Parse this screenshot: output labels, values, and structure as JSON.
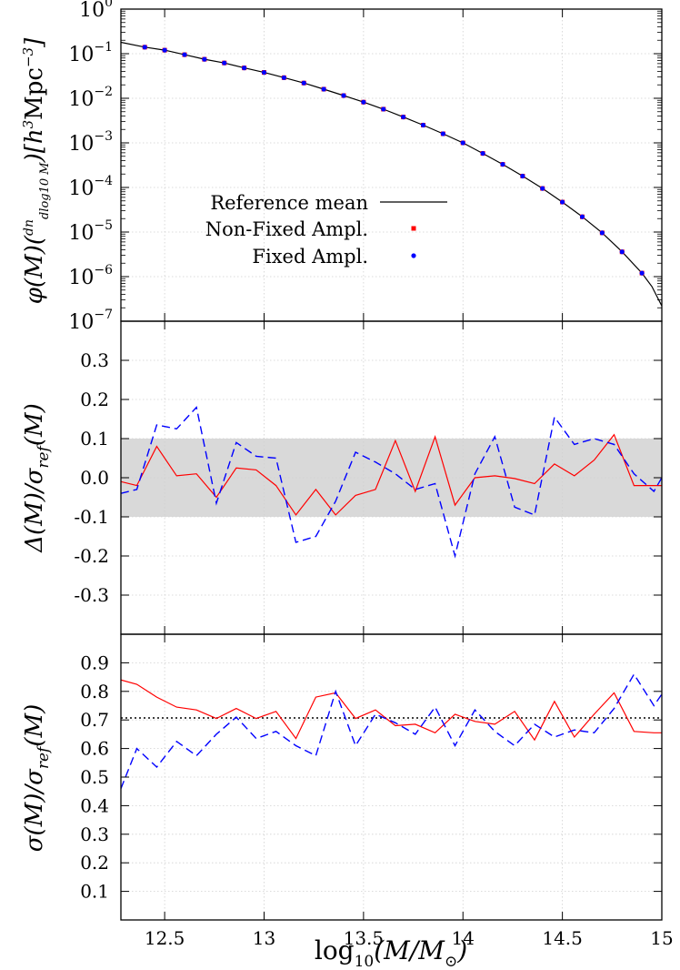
{
  "chart_data": [
    {
      "type": "line",
      "panel": "top",
      "ylabel": "φ(M)(dn/dlog10 M)[h^3 Mpc^-3]",
      "ylabel_parts": {
        "pre": "φ(M)(",
        "num": "dn",
        "den": "dlog",
        "den_sub": "10",
        "den_post": "M",
        "post": ")[h",
        "sup3": "3",
        "unit": "Mpc",
        "sup_neg": "−3",
        "close": "]"
      },
      "y_scale": "log",
      "ylim": [
        1e-07,
        1
      ],
      "xlim": [
        12.28,
        15.0
      ],
      "grid": true,
      "legend_position": "center-left",
      "yticks": [
        {
          "value": -7,
          "base": "10",
          "exp": "−7"
        },
        {
          "value": -6,
          "base": "10",
          "exp": "−6"
        },
        {
          "value": -5,
          "base": "10",
          "exp": "−5"
        },
        {
          "value": -4,
          "base": "10",
          "exp": "−4"
        },
        {
          "value": -3,
          "base": "10",
          "exp": "−3"
        },
        {
          "value": -2,
          "base": "10",
          "exp": "−2"
        },
        {
          "value": -1,
          "base": "10",
          "exp": "−1"
        },
        {
          "value": 0,
          "base": "10",
          "exp": "0"
        }
      ],
      "series": [
        {
          "name": "Reference mean",
          "style": "solid-line",
          "color": "#000000",
          "x": [
            12.28,
            12.4,
            12.5,
            12.6,
            12.7,
            12.8,
            12.9,
            13.0,
            13.1,
            13.2,
            13.3,
            13.4,
            13.5,
            13.6,
            13.7,
            13.8,
            13.9,
            14.0,
            14.1,
            14.2,
            14.3,
            14.4,
            14.5,
            14.6,
            14.7,
            14.8,
            14.9,
            14.95,
            15.0
          ],
          "y": [
            0.18,
            0.14,
            0.12,
            0.095,
            0.075,
            0.062,
            0.048,
            0.038,
            0.029,
            0.022,
            0.016,
            0.0115,
            0.0082,
            0.0057,
            0.0038,
            0.0025,
            0.0016,
            0.001,
            0.00058,
            0.00033,
            0.00018,
            9.5e-05,
            4.7e-05,
            2.2e-05,
            9.6e-06,
            3.6e-06,
            1.2e-06,
            6e-07,
            2.2e-07
          ]
        },
        {
          "name": "Non-Fixed Ampl.",
          "style": "square-points",
          "color": "#ff0000",
          "x": [
            12.4,
            12.5,
            12.6,
            12.7,
            12.8,
            12.9,
            13.0,
            13.1,
            13.2,
            13.3,
            13.4,
            13.5,
            13.6,
            13.7,
            13.8,
            13.9,
            14.0,
            14.1,
            14.2,
            14.3,
            14.4,
            14.5,
            14.6,
            14.7,
            14.8,
            14.9
          ],
          "y": [
            0.14,
            0.12,
            0.095,
            0.075,
            0.062,
            0.048,
            0.038,
            0.029,
            0.022,
            0.016,
            0.0115,
            0.0082,
            0.0057,
            0.0038,
            0.0025,
            0.0016,
            0.001,
            0.00058,
            0.00033,
            0.00018,
            9.5e-05,
            4.7e-05,
            2.2e-05,
            9.6e-06,
            3.6e-06,
            1.2e-06
          ]
        },
        {
          "name": "Fixed Ampl.",
          "style": "circle-points",
          "color": "#0000ff",
          "x": [
            12.4,
            12.5,
            12.6,
            12.7,
            12.8,
            12.9,
            13.0,
            13.1,
            13.2,
            13.3,
            13.4,
            13.5,
            13.6,
            13.7,
            13.8,
            13.9,
            14.0,
            14.1,
            14.2,
            14.3,
            14.4,
            14.5,
            14.6,
            14.7,
            14.8,
            14.9
          ],
          "y": [
            0.14,
            0.12,
            0.095,
            0.075,
            0.062,
            0.048,
            0.038,
            0.029,
            0.022,
            0.016,
            0.0115,
            0.0082,
            0.0057,
            0.0038,
            0.0025,
            0.0016,
            0.001,
            0.00058,
            0.00033,
            0.00018,
            9.5e-05,
            4.7e-05,
            2.2e-05,
            9.6e-06,
            3.6e-06,
            1.2e-06
          ]
        }
      ]
    },
    {
      "type": "line",
      "panel": "middle",
      "ylabel": "Δ(M)/σref(M)",
      "ylabel_parts": {
        "pre": "Δ(M)/σ",
        "sub": "ref",
        "post": "(M)"
      },
      "ylim": [
        -0.4,
        0.4
      ],
      "xlim": [
        12.28,
        15.0
      ],
      "grid": true,
      "band": {
        "from": -0.1,
        "to": 0.1,
        "color": "#d9d9d9"
      },
      "yticks": [
        {
          "value": -0.3,
          "label": "-0.3"
        },
        {
          "value": -0.2,
          "label": "-0.2"
        },
        {
          "value": -0.1,
          "label": "-0.1"
        },
        {
          "value": 0.0,
          "label": "0.0"
        },
        {
          "value": 0.1,
          "label": "0.1"
        },
        {
          "value": 0.2,
          "label": "0.2"
        },
        {
          "value": 0.3,
          "label": "0.3"
        }
      ],
      "series": [
        {
          "name": "Non-Fixed Ampl.",
          "style": "solid",
          "color": "#ff0000",
          "x": [
            12.28,
            12.36,
            12.46,
            12.56,
            12.66,
            12.76,
            12.86,
            12.96,
            13.06,
            13.16,
            13.26,
            13.36,
            13.46,
            13.56,
            13.66,
            13.76,
            13.86,
            13.96,
            14.06,
            14.16,
            14.26,
            14.36,
            14.46,
            14.56,
            14.66,
            14.76,
            14.86,
            14.96,
            15.0
          ],
          "y": [
            -0.01,
            -0.02,
            0.08,
            0.005,
            0.01,
            -0.05,
            0.025,
            0.02,
            -0.02,
            -0.095,
            -0.03,
            -0.095,
            -0.045,
            -0.03,
            0.095,
            -0.035,
            0.105,
            -0.07,
            0.0,
            0.005,
            -0.002,
            -0.015,
            0.035,
            0.005,
            0.045,
            0.11,
            -0.02,
            -0.02,
            -0.02
          ]
        },
        {
          "name": "Fixed Ampl.",
          "style": "dashed",
          "color": "#0000ff",
          "x": [
            12.28,
            12.36,
            12.46,
            12.56,
            12.66,
            12.76,
            12.86,
            12.96,
            13.06,
            13.16,
            13.26,
            13.36,
            13.46,
            13.56,
            13.66,
            13.76,
            13.86,
            13.96,
            14.06,
            14.16,
            14.26,
            14.36,
            14.46,
            14.56,
            14.66,
            14.76,
            14.86,
            14.96,
            15.0
          ],
          "y": [
            -0.04,
            -0.03,
            0.135,
            0.125,
            0.18,
            -0.065,
            0.09,
            0.055,
            0.05,
            -0.165,
            -0.15,
            -0.06,
            0.065,
            0.04,
            0.01,
            -0.03,
            -0.015,
            -0.2,
            0.01,
            0.105,
            -0.075,
            -0.095,
            0.155,
            0.085,
            0.1,
            0.085,
            0.01,
            -0.035,
            0.0
          ]
        }
      ]
    },
    {
      "type": "line",
      "panel": "bottom",
      "ylabel": "σ(M)/σref(M)",
      "ylabel_parts": {
        "pre": "σ(M)/σ",
        "sub": "ref",
        "post": "(M)"
      },
      "xlabel": "log10(M/M⊙)",
      "xlabel_parts": {
        "pre": "log",
        "sub": "10",
        "mid": "(M/M",
        "sub2": "⊙",
        "post": ")"
      },
      "ylim": [
        0.0,
        1.0
      ],
      "xlim": [
        12.28,
        15.0
      ],
      "grid": true,
      "reference_line": {
        "y": 0.707,
        "style": "dotted",
        "color": "#000000"
      },
      "xticks": [
        {
          "value": 12.5,
          "label": "12.5"
        },
        {
          "value": 13.0,
          "label": "13"
        },
        {
          "value": 13.5,
          "label": "13.5"
        },
        {
          "value": 14.0,
          "label": "14"
        },
        {
          "value": 14.5,
          "label": "14.5"
        },
        {
          "value": 15.0,
          "label": "15"
        }
      ],
      "yticks": [
        {
          "value": 0.1,
          "label": "0.1"
        },
        {
          "value": 0.2,
          "label": "0.2"
        },
        {
          "value": 0.3,
          "label": "0.3"
        },
        {
          "value": 0.4,
          "label": "0.4"
        },
        {
          "value": 0.5,
          "label": "0.5"
        },
        {
          "value": 0.6,
          "label": "0.6"
        },
        {
          "value": 0.7,
          "label": "0.7"
        },
        {
          "value": 0.8,
          "label": "0.8"
        },
        {
          "value": 0.9,
          "label": "0.9"
        }
      ],
      "series": [
        {
          "name": "Non-Fixed Ampl.",
          "style": "solid",
          "color": "#ff0000",
          "x": [
            12.28,
            12.36,
            12.46,
            12.56,
            12.66,
            12.76,
            12.86,
            12.96,
            13.06,
            13.16,
            13.26,
            13.36,
            13.46,
            13.56,
            13.66,
            13.76,
            13.86,
            13.96,
            14.06,
            14.16,
            14.26,
            14.36,
            14.46,
            14.56,
            14.66,
            14.76,
            14.86,
            14.96,
            15.0
          ],
          "y": [
            0.84,
            0.825,
            0.78,
            0.745,
            0.735,
            0.705,
            0.74,
            0.705,
            0.73,
            0.635,
            0.78,
            0.795,
            0.705,
            0.735,
            0.68,
            0.685,
            0.655,
            0.72,
            0.695,
            0.685,
            0.73,
            0.63,
            0.765,
            0.64,
            0.72,
            0.795,
            0.66,
            0.655,
            0.655
          ]
        },
        {
          "name": "Fixed Ampl.",
          "style": "dashed",
          "color": "#0000ff",
          "x": [
            12.28,
            12.36,
            12.46,
            12.56,
            12.66,
            12.76,
            12.86,
            12.96,
            13.06,
            13.16,
            13.26,
            13.36,
            13.46,
            13.56,
            13.66,
            13.76,
            13.86,
            13.96,
            14.06,
            14.16,
            14.26,
            14.36,
            14.46,
            14.56,
            14.66,
            14.76,
            14.86,
            14.96,
            15.0
          ],
          "y": [
            0.46,
            0.6,
            0.535,
            0.625,
            0.575,
            0.65,
            0.71,
            0.635,
            0.66,
            0.61,
            0.575,
            0.8,
            0.61,
            0.72,
            0.69,
            0.65,
            0.745,
            0.61,
            0.735,
            0.66,
            0.61,
            0.685,
            0.64,
            0.665,
            0.655,
            0.74,
            0.86,
            0.75,
            0.79
          ]
        }
      ]
    }
  ],
  "colors": {
    "grid": "#d0d0d0",
    "band": "#d9d9d9",
    "axis": "#000000"
  }
}
